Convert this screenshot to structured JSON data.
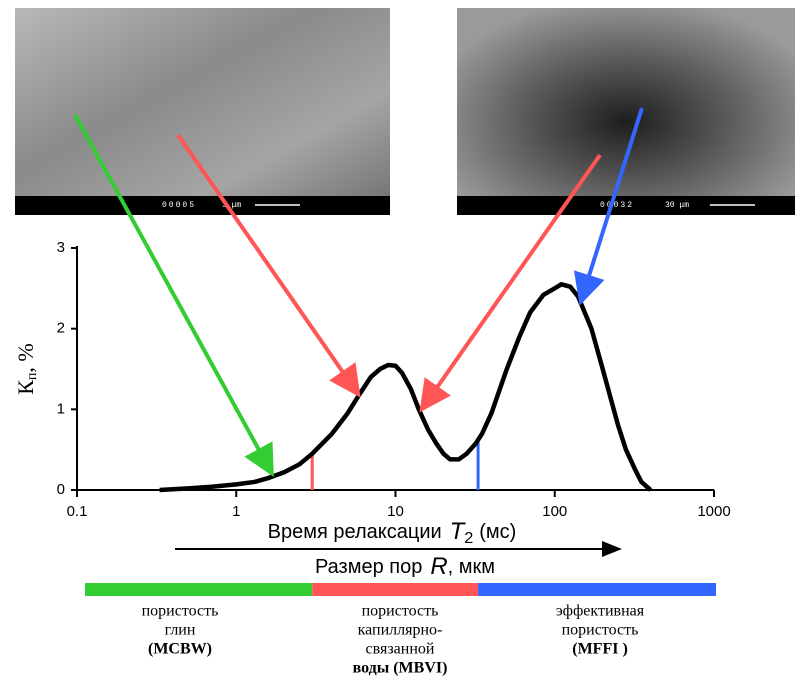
{
  "chart_data": {
    "type": "line",
    "y_label": {
      "main": "К",
      "sub": "п",
      "unit": ", %"
    },
    "x_label": {
      "text": "Время релаксации",
      "var": "T",
      "sub": "2",
      "unit": "(мс)"
    },
    "x_label_2": {
      "text": "Размер пор",
      "var": "R",
      "unit": ", мкм"
    },
    "x_log": true,
    "xlim": [
      0.1,
      1000
    ],
    "xticks": [
      0.1,
      1,
      10,
      100,
      1000
    ],
    "ylim": [
      0,
      3
    ],
    "yticks": [
      0,
      1,
      2,
      3
    ],
    "series": [
      {
        "color": "#000000",
        "x": [
          0.33,
          0.5,
          0.7,
          1,
          1.3,
          1.6,
          2,
          2.5,
          3,
          4,
          5,
          6,
          7,
          8,
          9,
          10,
          11,
          12.5,
          14,
          16,
          18,
          20,
          22,
          25,
          28,
          32,
          35,
          40,
          50,
          60,
          70,
          85,
          100,
          110,
          125,
          140,
          170,
          200,
          220,
          250,
          280,
          320,
          350,
          400
        ],
        "values": [
          0.0,
          0.02,
          0.04,
          0.07,
          0.1,
          0.15,
          0.22,
          0.32,
          0.45,
          0.7,
          0.95,
          1.2,
          1.4,
          1.5,
          1.55,
          1.54,
          1.45,
          1.25,
          1.0,
          0.75,
          0.58,
          0.45,
          0.38,
          0.38,
          0.45,
          0.58,
          0.7,
          0.95,
          1.5,
          1.9,
          2.2,
          2.42,
          2.5,
          2.55,
          2.52,
          2.4,
          2.0,
          1.5,
          1.2,
          0.8,
          0.5,
          0.25,
          0.1,
          0.0
        ]
      }
    ],
    "cutoffs": [
      {
        "x": 3,
        "y": 0.45,
        "color": "#ff5555"
      },
      {
        "x": 33,
        "y": 0.62,
        "color": "#3366ff"
      }
    ],
    "bands": [
      {
        "color": "#33cc33",
        "lines": [
          "пористость",
          "глин",
          "(MCBW)"
        ]
      },
      {
        "color": "#ff5555",
        "lines": [
          "пористость",
          "капиллярно-",
          "связанной",
          "воды (MBVI)"
        ]
      },
      {
        "color": "#3366ff",
        "lines": [
          "эффективная",
          "пористость",
          "(MFFI )"
        ]
      }
    ],
    "images": [
      {
        "id": "00005",
        "scale": "3 μm"
      },
      {
        "id": "00032",
        "scale": "30 μm"
      }
    ]
  }
}
